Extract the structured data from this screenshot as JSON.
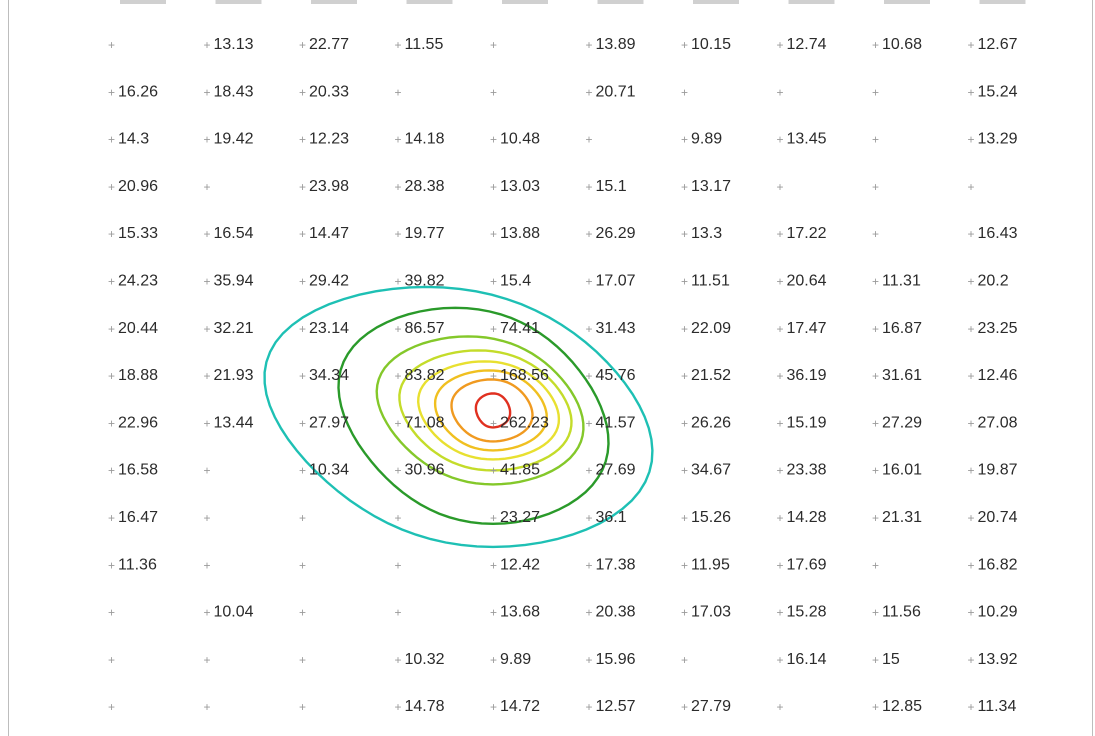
{
  "chart_data": {
    "type": "heatmap",
    "title": "",
    "xlabel": "",
    "ylabel": "",
    "columns": 10,
    "rows": [
      [
        "",
        "13.13",
        "22.77",
        "11.55",
        "",
        "13.89",
        "10.15",
        "12.74",
        "10.68",
        "12.67"
      ],
      [
        "16.26",
        "18.43",
        "20.33",
        "",
        "",
        "20.71",
        "",
        "",
        "",
        "15.24"
      ],
      [
        "14.3",
        "19.42",
        "12.23",
        "14.18",
        "10.48",
        "",
        "9.89",
        "13.45",
        "",
        "13.29"
      ],
      [
        "20.96",
        "",
        "23.98",
        "28.38",
        "13.03",
        "15.1",
        "13.17",
        "",
        "",
        ""
      ],
      [
        "15.33",
        "16.54",
        "14.47",
        "19.77",
        "13.88",
        "26.29",
        "13.3",
        "17.22",
        "",
        "16.43"
      ],
      [
        "24.23",
        "35.94",
        "29.42",
        "39.82",
        "15.4",
        "17.07",
        "11.51",
        "20.64",
        "11.31",
        "20.2"
      ],
      [
        "20.44",
        "32.21",
        "23.14",
        "86.57",
        "74.41",
        "31.43",
        "22.09",
        "17.47",
        "16.87",
        "23.25"
      ],
      [
        "18.88",
        "21.93",
        "34.34",
        "83.82",
        "168.56",
        "45.76",
        "21.52",
        "36.19",
        "31.61",
        "12.46"
      ],
      [
        "22.96",
        "13.44",
        "27.97",
        "71.08",
        "262.23",
        "41.57",
        "26.26",
        "15.19",
        "27.29",
        "27.08"
      ],
      [
        "16.58",
        "",
        "10.34",
        "30.96",
        "41.85",
        "27.69",
        "34.67",
        "23.38",
        "16.01",
        "19.87"
      ],
      [
        "16.47",
        "",
        "",
        "",
        "23.27",
        "36.1",
        "15.26",
        "14.28",
        "21.31",
        "20.74"
      ],
      [
        "11.36",
        "",
        "",
        "",
        "12.42",
        "17.38",
        "11.95",
        "17.69",
        "",
        "16.82"
      ],
      [
        "",
        "10.04",
        "",
        "",
        "13.68",
        "20.38",
        "17.03",
        "15.28",
        "11.56",
        "10.29"
      ],
      [
        "",
        "",
        "",
        "10.32",
        "9.89",
        "15.96",
        "",
        "16.14",
        "15",
        "13.92"
      ],
      [
        "",
        "",
        "",
        "14.78",
        "14.72",
        "12.57",
        "27.79",
        "",
        "12.85",
        "11.34"
      ]
    ],
    "peak": {
      "value": "262.23",
      "row": 8,
      "col": 4
    },
    "contours": [
      {
        "level": "outer",
        "color": "#1ec0b4"
      },
      {
        "level": "2",
        "color": "#2a9a2a"
      },
      {
        "level": "3",
        "color": "#84c82a"
      },
      {
        "level": "4",
        "color": "#c4dc2a"
      },
      {
        "level": "5",
        "color": "#e8e030"
      },
      {
        "level": "6",
        "color": "#f0c020"
      },
      {
        "level": "7",
        "color": "#f09a20"
      },
      {
        "level": "peak",
        "color": "#e03020"
      }
    ],
    "marker_glyph": "+",
    "grid": false,
    "legend": "none"
  }
}
